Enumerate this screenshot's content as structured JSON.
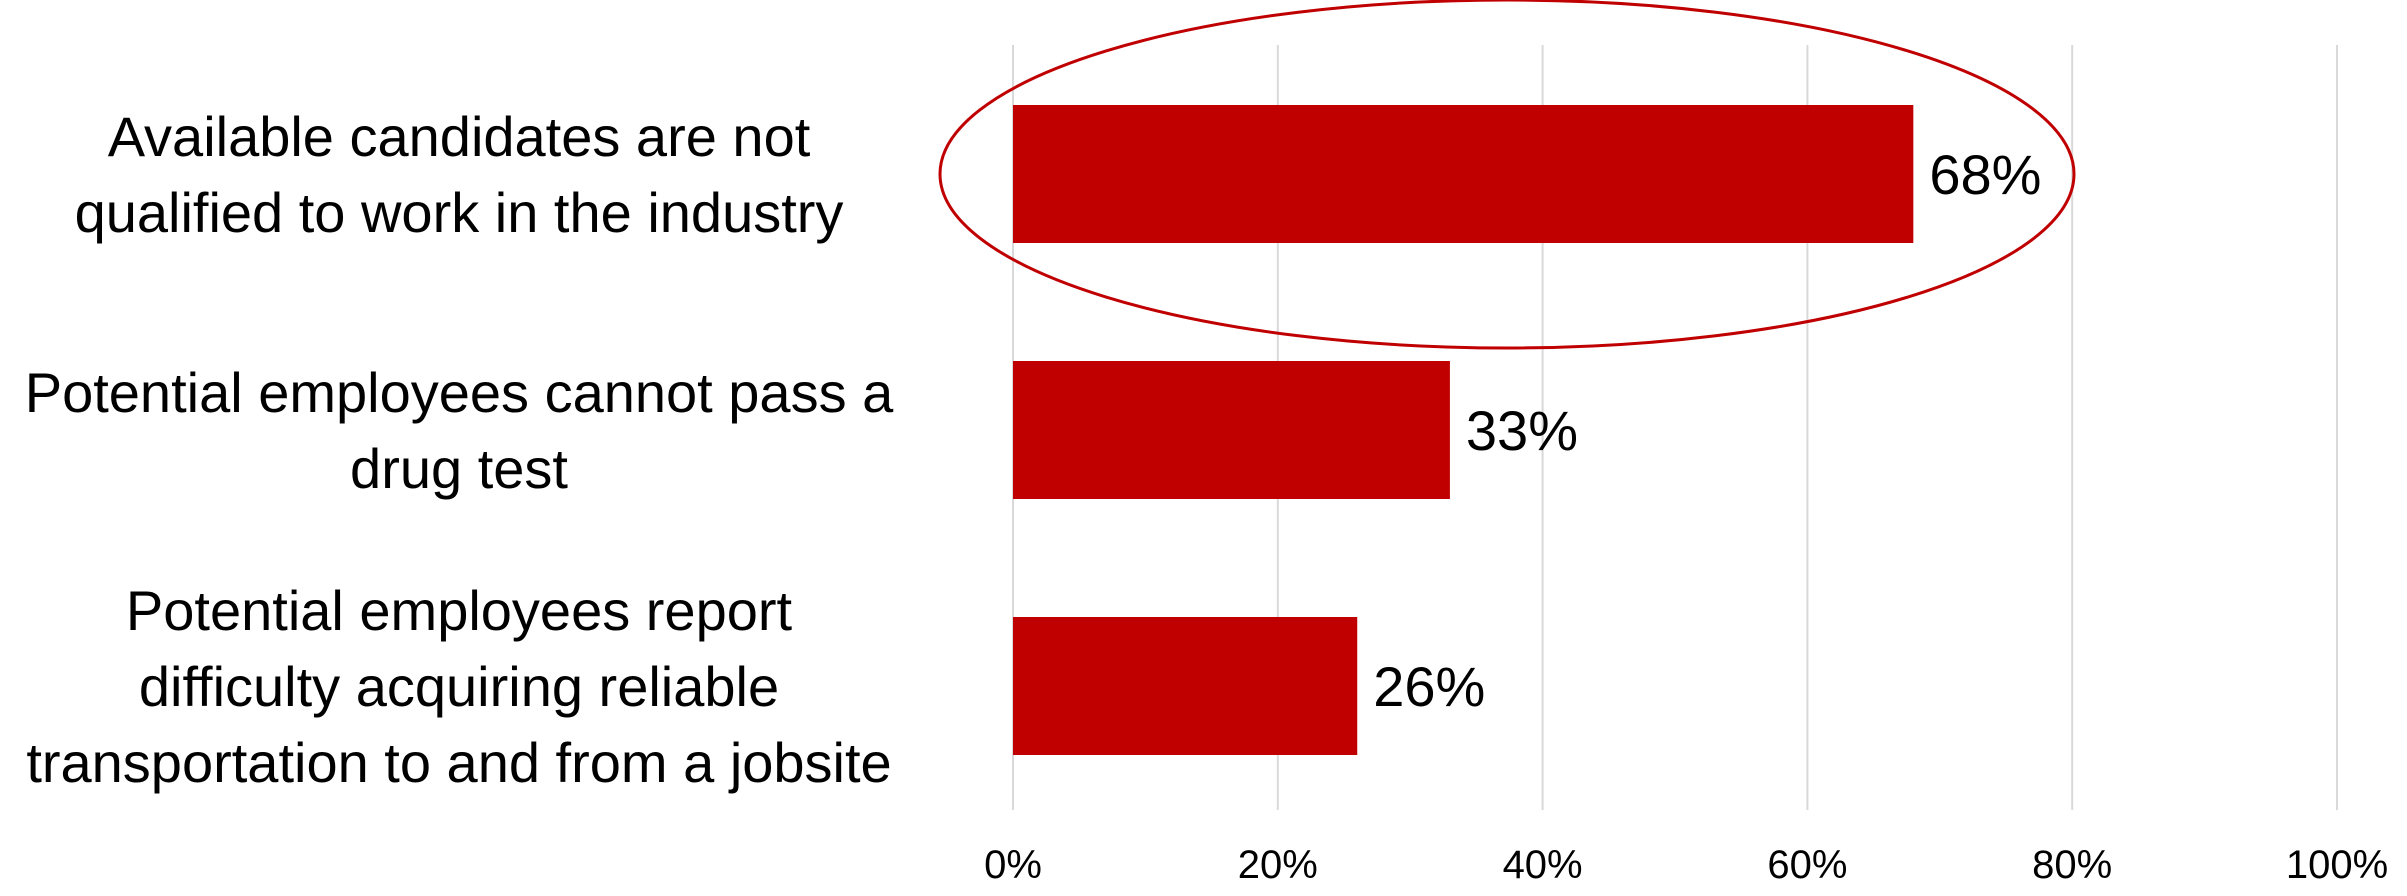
{
  "chart_data": {
    "type": "bar",
    "orientation": "horizontal",
    "categories": [
      "Available candidates are not qualified to work in the industry",
      "Potential employees cannot pass a drug test",
      "Potential employees report difficulty acquiring reliable transportation to and from a jobsite"
    ],
    "category_lines": [
      [
        "Available candidates are not",
        "qualified to work in the industry"
      ],
      [
        "Potential employees cannot pass a",
        "drug test"
      ],
      [
        "Potential employees report",
        "difficulty acquiring reliable",
        "transportation to and from a jobsite"
      ]
    ],
    "values": [
      68,
      33,
      26
    ],
    "data_labels": [
      "68%",
      "33%",
      "26%"
    ],
    "xlim": [
      0,
      100
    ],
    "xticks": [
      0,
      20,
      40,
      60,
      80,
      100
    ],
    "xtick_labels": [
      "0%",
      "20%",
      "40%",
      "60%",
      "80%",
      "100%"
    ],
    "title": "",
    "xlabel": "",
    "ylabel": "",
    "grid": "vertical",
    "legend": "none",
    "highlighted_category_index": 0
  },
  "colors": {
    "bar": "#C00000",
    "highlight_outline": "#C00000",
    "grid": "#D9D9D9",
    "text": "#000000"
  }
}
